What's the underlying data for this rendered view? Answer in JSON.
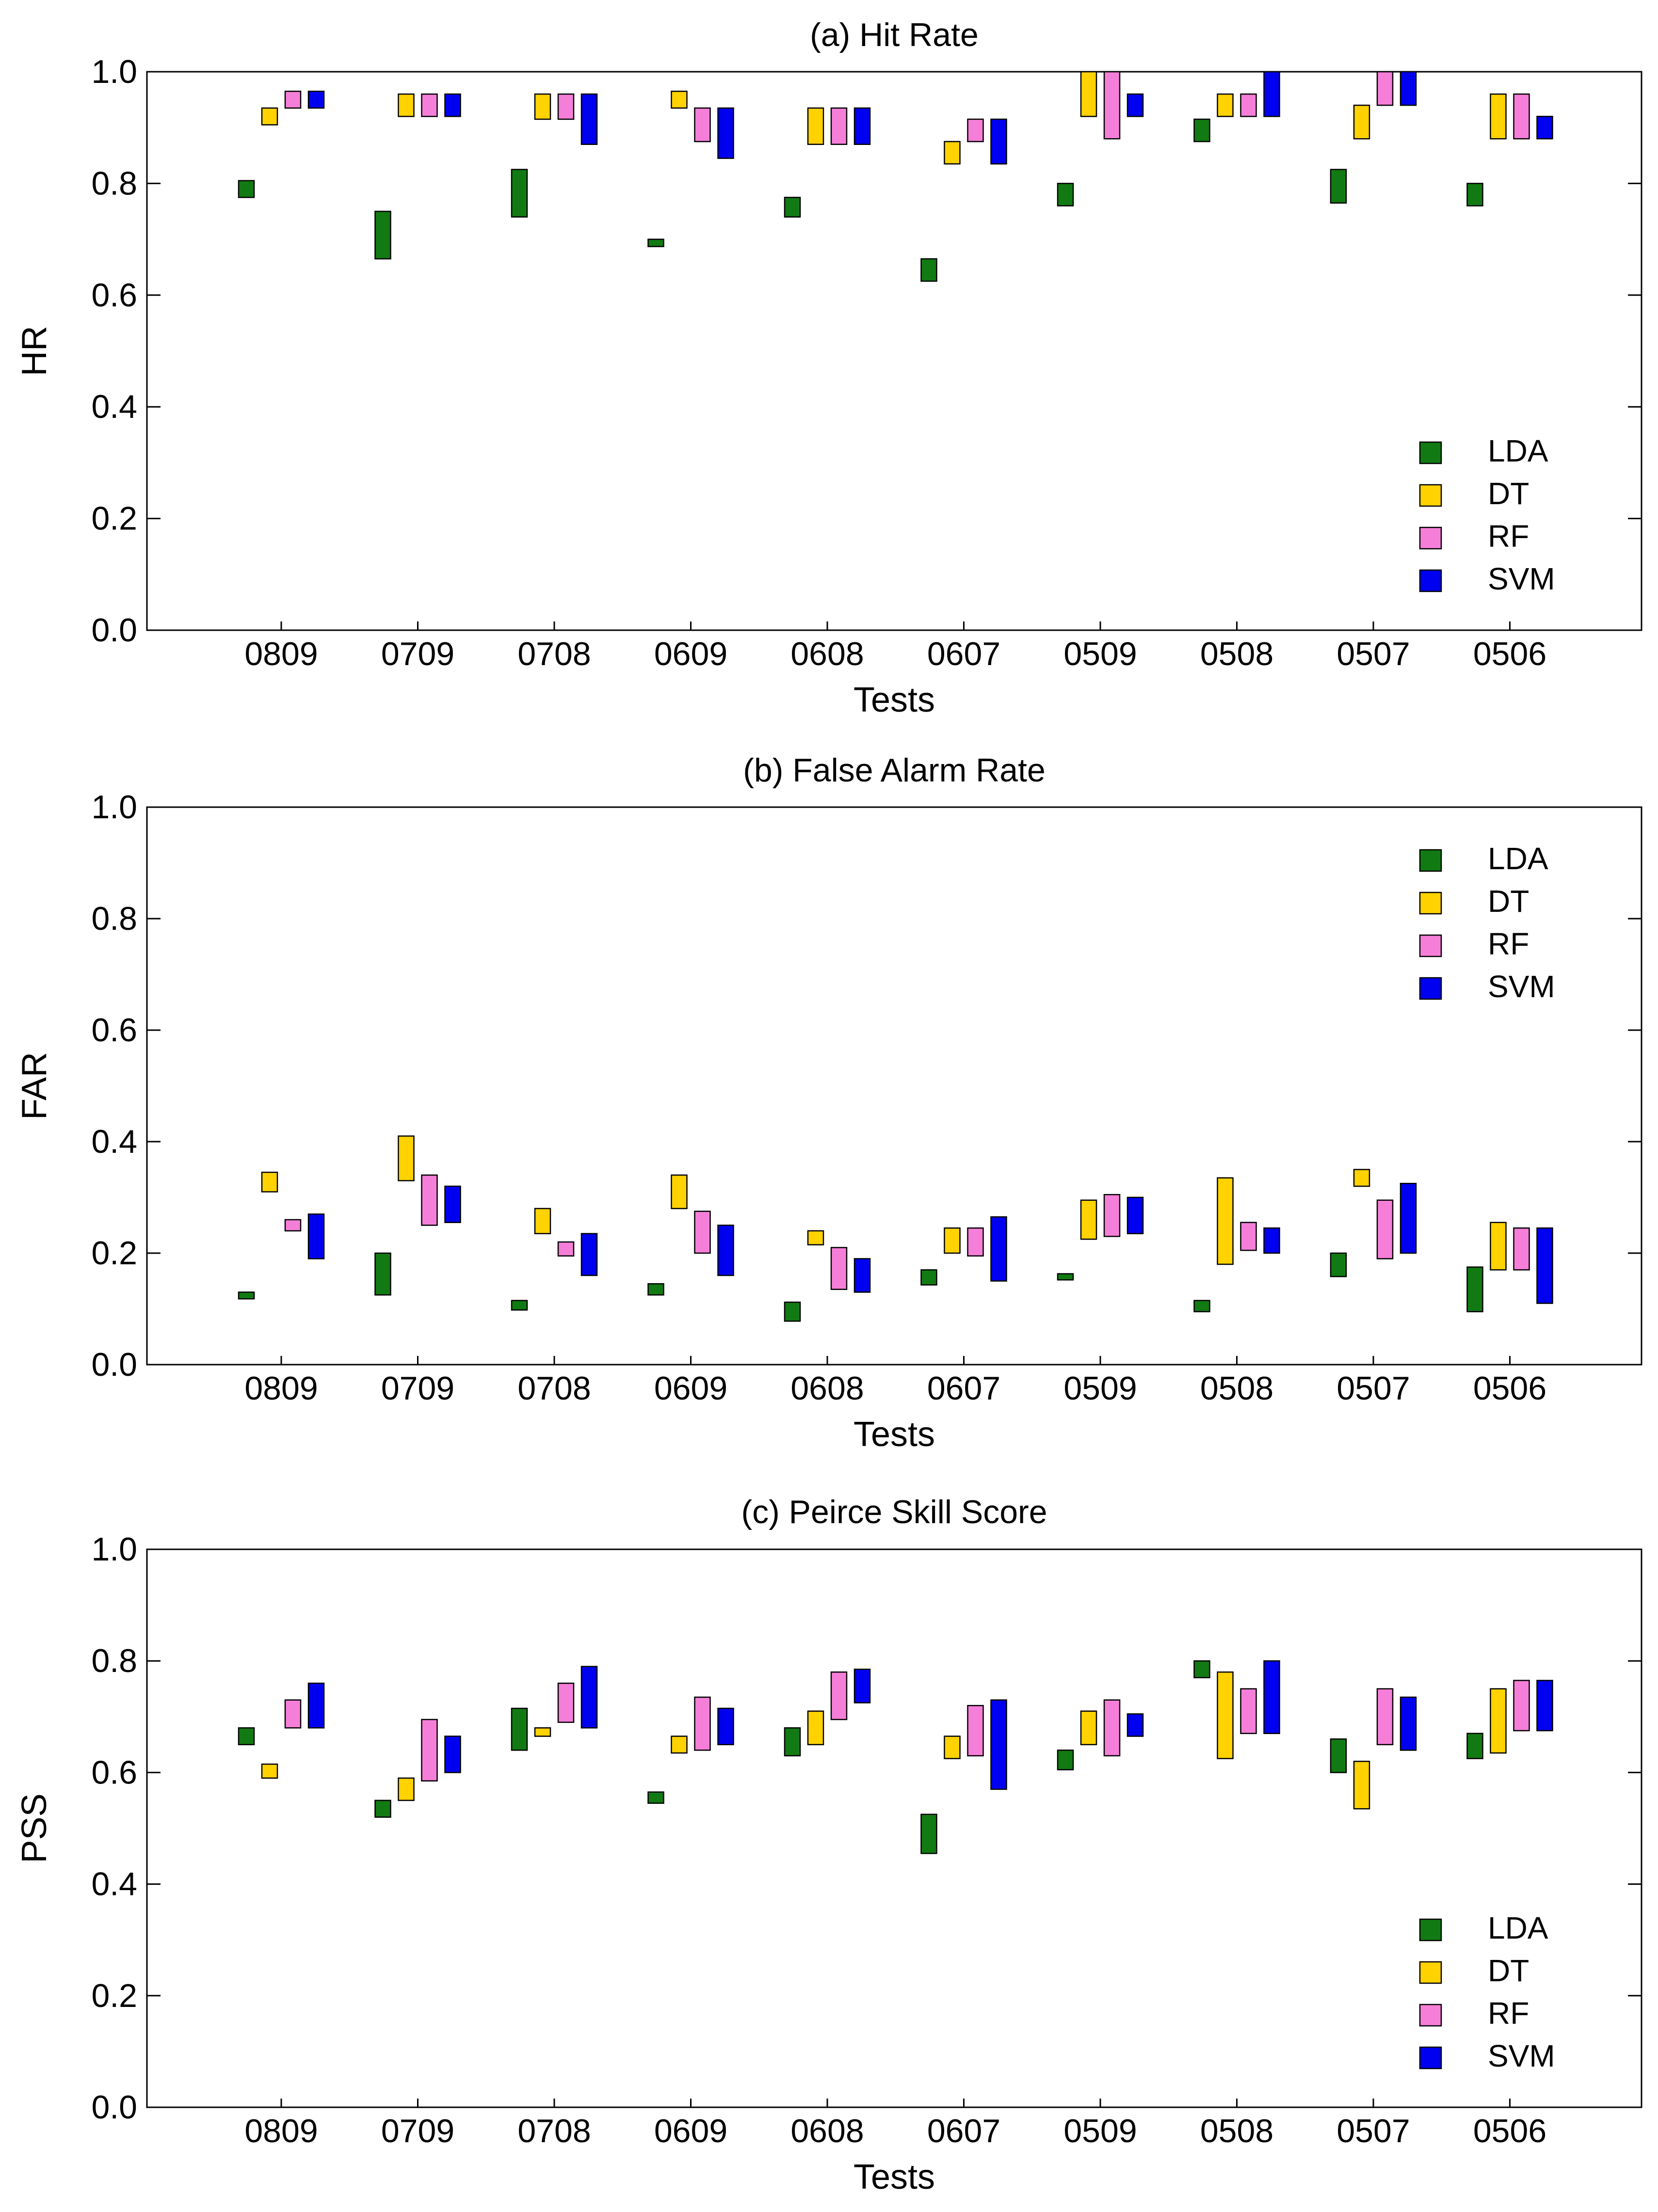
{
  "figure": {
    "colors": {
      "LDA": "#127a12",
      "DT": "#ffd200",
      "RF": "#f57fd8",
      "SVM": "#0000f0"
    }
  },
  "chart_data": [
    {
      "type": "bar",
      "subtype": "floating-range",
      "title": "(a) Hit Rate",
      "xlabel": "Tests",
      "ylabel": "HR",
      "ylim": [
        0,
        1
      ],
      "yticks": [
        "0.0",
        "0.2",
        "0.4",
        "0.6",
        "0.8",
        "1.0"
      ],
      "legend_position": "bottom-right",
      "categories": [
        "0809",
        "0709",
        "0708",
        "0609",
        "0608",
        "0607",
        "0509",
        "0508",
        "0507",
        "0506"
      ],
      "series": [
        {
          "name": "LDA",
          "ranges": [
            [
              0.775,
              0.805
            ],
            [
              0.665,
              0.75
            ],
            [
              0.74,
              0.825
            ],
            [
              0.687,
              0.7
            ],
            [
              0.74,
              0.775
            ],
            [
              0.625,
              0.665
            ],
            [
              0.76,
              0.8
            ],
            [
              0.875,
              0.915
            ],
            [
              0.765,
              0.825
            ],
            [
              0.76,
              0.8
            ]
          ]
        },
        {
          "name": "DT",
          "ranges": [
            [
              0.905,
              0.935
            ],
            [
              0.92,
              0.96
            ],
            [
              0.915,
              0.96
            ],
            [
              0.935,
              0.965
            ],
            [
              0.87,
              0.935
            ],
            [
              0.835,
              0.875
            ],
            [
              0.92,
              1.0
            ],
            [
              0.92,
              0.96
            ],
            [
              0.88,
              0.94
            ],
            [
              0.88,
              0.96
            ]
          ]
        },
        {
          "name": "RF",
          "ranges": [
            [
              0.935,
              0.965
            ],
            [
              0.92,
              0.96
            ],
            [
              0.915,
              0.96
            ],
            [
              0.875,
              0.935
            ],
            [
              0.87,
              0.935
            ],
            [
              0.875,
              0.915
            ],
            [
              0.88,
              1.0
            ],
            [
              0.92,
              0.96
            ],
            [
              0.94,
              1.0
            ],
            [
              0.88,
              0.96
            ]
          ]
        },
        {
          "name": "SVM",
          "ranges": [
            [
              0.935,
              0.965
            ],
            [
              0.92,
              0.96
            ],
            [
              0.87,
              0.96
            ],
            [
              0.845,
              0.935
            ],
            [
              0.87,
              0.935
            ],
            [
              0.835,
              0.915
            ],
            [
              0.92,
              0.96
            ],
            [
              0.92,
              1.0
            ],
            [
              0.94,
              1.0
            ],
            [
              0.88,
              0.92
            ]
          ]
        }
      ]
    },
    {
      "type": "bar",
      "subtype": "floating-range",
      "title": "(b) False Alarm Rate",
      "xlabel": "Tests",
      "ylabel": "FAR",
      "ylim": [
        0,
        1
      ],
      "yticks": [
        "0.0",
        "0.2",
        "0.4",
        "0.6",
        "0.8",
        "1.0"
      ],
      "legend_position": "top-right",
      "categories": [
        "0809",
        "0709",
        "0708",
        "0609",
        "0608",
        "0607",
        "0509",
        "0508",
        "0507",
        "0506"
      ],
      "series": [
        {
          "name": "LDA",
          "ranges": [
            [
              0.118,
              0.13
            ],
            [
              0.125,
              0.2
            ],
            [
              0.098,
              0.115
            ],
            [
              0.125,
              0.145
            ],
            [
              0.078,
              0.112
            ],
            [
              0.143,
              0.17
            ],
            [
              0.152,
              0.163
            ],
            [
              0.095,
              0.115
            ],
            [
              0.158,
              0.2
            ],
            [
              0.095,
              0.175
            ]
          ]
        },
        {
          "name": "DT",
          "ranges": [
            [
              0.31,
              0.345
            ],
            [
              0.33,
              0.41
            ],
            [
              0.235,
              0.28
            ],
            [
              0.28,
              0.34
            ],
            [
              0.215,
              0.24
            ],
            [
              0.2,
              0.245
            ],
            [
              0.225,
              0.295
            ],
            [
              0.18,
              0.335
            ],
            [
              0.32,
              0.35
            ],
            [
              0.17,
              0.255
            ]
          ]
        },
        {
          "name": "RF",
          "ranges": [
            [
              0.24,
              0.26
            ],
            [
              0.25,
              0.34
            ],
            [
              0.195,
              0.22
            ],
            [
              0.2,
              0.275
            ],
            [
              0.135,
              0.21
            ],
            [
              0.195,
              0.245
            ],
            [
              0.23,
              0.305
            ],
            [
              0.205,
              0.255
            ],
            [
              0.19,
              0.295
            ],
            [
              0.17,
              0.245
            ]
          ]
        },
        {
          "name": "SVM",
          "ranges": [
            [
              0.19,
              0.27
            ],
            [
              0.255,
              0.32
            ],
            [
              0.16,
              0.235
            ],
            [
              0.16,
              0.25
            ],
            [
              0.13,
              0.19
            ],
            [
              0.15,
              0.265
            ],
            [
              0.235,
              0.3
            ],
            [
              0.2,
              0.245
            ],
            [
              0.2,
              0.325
            ],
            [
              0.11,
              0.245
            ]
          ]
        }
      ]
    },
    {
      "type": "bar",
      "subtype": "floating-range",
      "title": "(c) Peirce Skill Score",
      "xlabel": "Tests",
      "ylabel": "PSS",
      "ylim": [
        0,
        1
      ],
      "yticks": [
        "0.0",
        "0.2",
        "0.4",
        "0.6",
        "0.8",
        "1.0"
      ],
      "legend_position": "bottom-right",
      "categories": [
        "0809",
        "0709",
        "0708",
        "0609",
        "0608",
        "0607",
        "0509",
        "0508",
        "0507",
        "0506"
      ],
      "series": [
        {
          "name": "LDA",
          "ranges": [
            [
              0.65,
              0.68
            ],
            [
              0.52,
              0.55
            ],
            [
              0.64,
              0.715
            ],
            [
              0.545,
              0.565
            ],
            [
              0.63,
              0.68
            ],
            [
              0.455,
              0.525
            ],
            [
              0.605,
              0.64
            ],
            [
              0.77,
              0.8
            ],
            [
              0.6,
              0.66
            ],
            [
              0.625,
              0.67
            ]
          ]
        },
        {
          "name": "DT",
          "ranges": [
            [
              0.59,
              0.615
            ],
            [
              0.55,
              0.59
            ],
            [
              0.665,
              0.68
            ],
            [
              0.635,
              0.665
            ],
            [
              0.65,
              0.71
            ],
            [
              0.625,
              0.665
            ],
            [
              0.65,
              0.71
            ],
            [
              0.625,
              0.78
            ],
            [
              0.535,
              0.62
            ],
            [
              0.635,
              0.75
            ]
          ]
        },
        {
          "name": "RF",
          "ranges": [
            [
              0.68,
              0.73
            ],
            [
              0.585,
              0.695
            ],
            [
              0.69,
              0.76
            ],
            [
              0.64,
              0.735
            ],
            [
              0.695,
              0.78
            ],
            [
              0.63,
              0.72
            ],
            [
              0.63,
              0.73
            ],
            [
              0.67,
              0.75
            ],
            [
              0.65,
              0.75
            ],
            [
              0.675,
              0.765
            ]
          ]
        },
        {
          "name": "SVM",
          "ranges": [
            [
              0.68,
              0.76
            ],
            [
              0.6,
              0.665
            ],
            [
              0.68,
              0.79
            ],
            [
              0.65,
              0.715
            ],
            [
              0.725,
              0.785
            ],
            [
              0.57,
              0.73
            ],
            [
              0.665,
              0.705
            ],
            [
              0.67,
              0.8
            ],
            [
              0.64,
              0.735
            ],
            [
              0.675,
              0.765
            ]
          ]
        }
      ]
    }
  ]
}
